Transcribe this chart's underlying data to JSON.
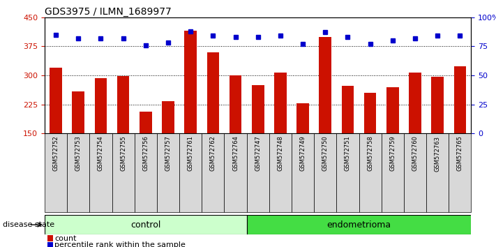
{
  "title": "GDS3975 / ILMN_1689977",
  "samples": [
    "GSM572752",
    "GSM572753",
    "GSM572754",
    "GSM572755",
    "GSM572756",
    "GSM572757",
    "GSM572761",
    "GSM572762",
    "GSM572764",
    "GSM572747",
    "GSM572748",
    "GSM572749",
    "GSM572750",
    "GSM572751",
    "GSM572758",
    "GSM572759",
    "GSM572760",
    "GSM572763",
    "GSM572765"
  ],
  "counts": [
    320,
    258,
    293,
    298,
    207,
    233,
    415,
    360,
    300,
    275,
    308,
    228,
    400,
    272,
    255,
    270,
    308,
    297,
    323
  ],
  "percentiles": [
    85,
    82,
    82,
    82,
    76,
    78,
    88,
    84,
    83,
    83,
    84,
    77,
    87,
    83,
    77,
    80,
    82,
    84,
    84
  ],
  "n_control": 9,
  "n_endo": 10,
  "control_label": "control",
  "endo_label": "endometrioma",
  "disease_state_label": "disease state",
  "ylim_left": [
    150,
    450
  ],
  "ylim_right": [
    0,
    100
  ],
  "yticks_left": [
    150,
    225,
    300,
    375,
    450
  ],
  "yticks_right": [
    0,
    25,
    50,
    75,
    100
  ],
  "hlines": [
    225,
    300,
    375
  ],
  "bar_color": "#cc1100",
  "dot_color": "#0000cc",
  "plot_bg": "#ffffff",
  "control_bg": "#ccffcc",
  "endo_bg": "#44dd44",
  "ticklabel_bg": "#d8d8d8",
  "legend_count": "count",
  "legend_pct": "percentile rank within the sample",
  "title_fontsize": 10,
  "axis_color_left": "#cc1100",
  "axis_color_right": "#0000cc"
}
